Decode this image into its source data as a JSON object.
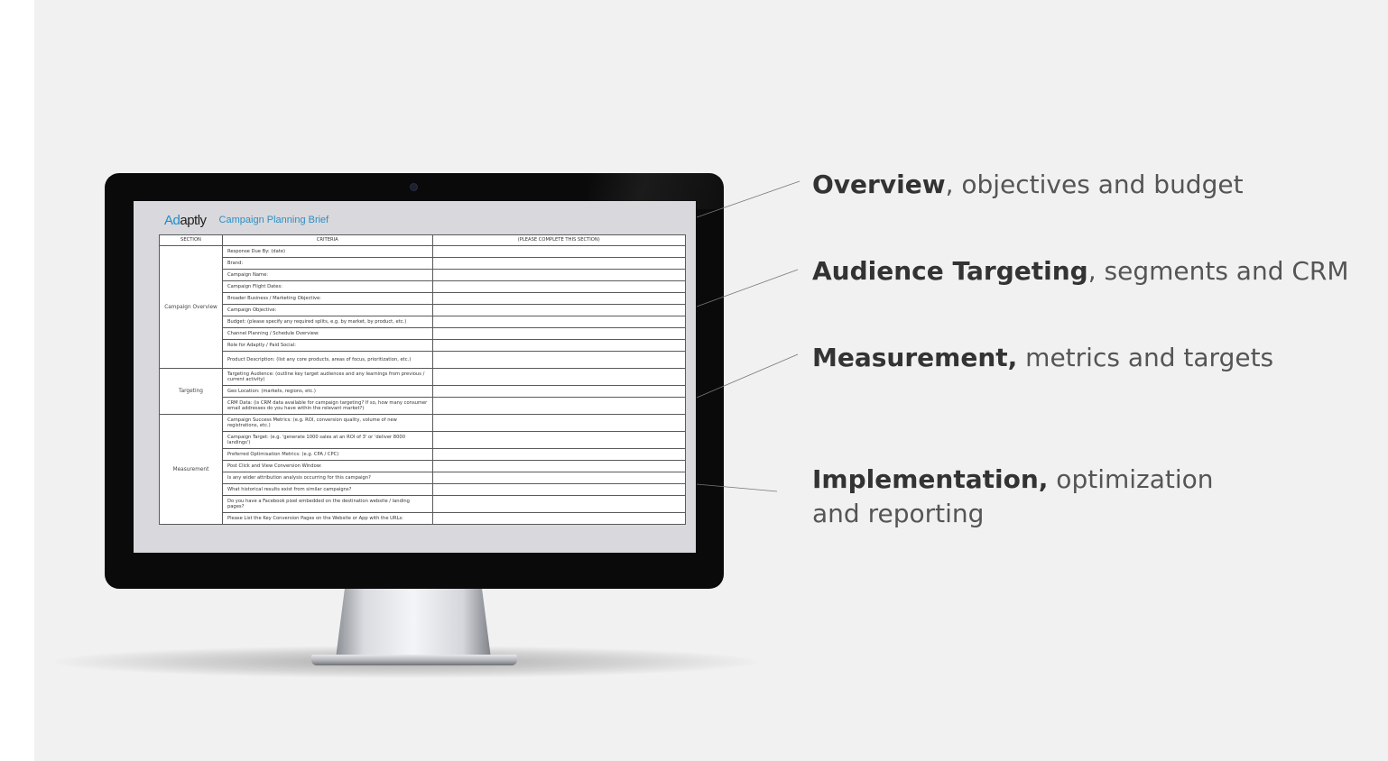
{
  "document": {
    "logo_prefix": "Ad",
    "logo_suffix": "aptly",
    "title": "Campaign Planning Brief",
    "columns": [
      "SECTION",
      "CRITERIA",
      "(PLEASE COMPLETE THIS SECTION)"
    ],
    "sections": [
      {
        "name": "Campaign Overview",
        "criteria": [
          "Response Due By: (date)",
          "Brand:",
          "Campaign Name:",
          "Campaign Flight Dates:",
          "Broader Business / Marketing Objective:",
          "Campaign Objective:",
          "Budget: (please specify any required splits, e.g. by market, by product, etc.)",
          "Channel Planning / Schedule Overview:",
          "Role for Adaptly / Paid Social:",
          "Product Description: (list any core products, areas of focus, prioritization, etc.)"
        ]
      },
      {
        "name": "Targeting",
        "criteria": [
          "Targeting Audience: (outline key target audiences and any learnings from previous / current activity)",
          "Geo Location: (markets, regions, etc.)",
          "CRM Data: (is CRM data available for campaign targeting? If so, how many consumer email addresses do you have within the relevant market?)"
        ]
      },
      {
        "name": "Measurement",
        "criteria": [
          "Campaign Success Metrics: (e.g. ROI, conversion quality, volume of new registrations, etc.)",
          "Campaign Target: (e.g. 'generate 1000 sales at an ROI of 3' or 'deliver 8000 landings')",
          "Preferred Optimisation Metrics: (e.g. CPA / CPC)",
          "Post Click and View Conversion Window:",
          "Is any wider attribution analysis occurring for this campaign?",
          "What historical results exist from similar campaigns?",
          "Do you have a Facebook pixel embedded on the destination website / landing pages?",
          "Please List the Key Conversion Pages on the Website or App with the URLs:"
        ]
      }
    ]
  },
  "callouts": [
    {
      "bold": "Overview",
      "rest": ", objectives and budget"
    },
    {
      "bold": "Audience Targeting",
      "rest": ", segments and CRM"
    },
    {
      "bold": "Measurement,",
      "rest": " metrics and targets"
    },
    {
      "bold": "Implementation,",
      "rest": " optimization and reporting"
    }
  ]
}
